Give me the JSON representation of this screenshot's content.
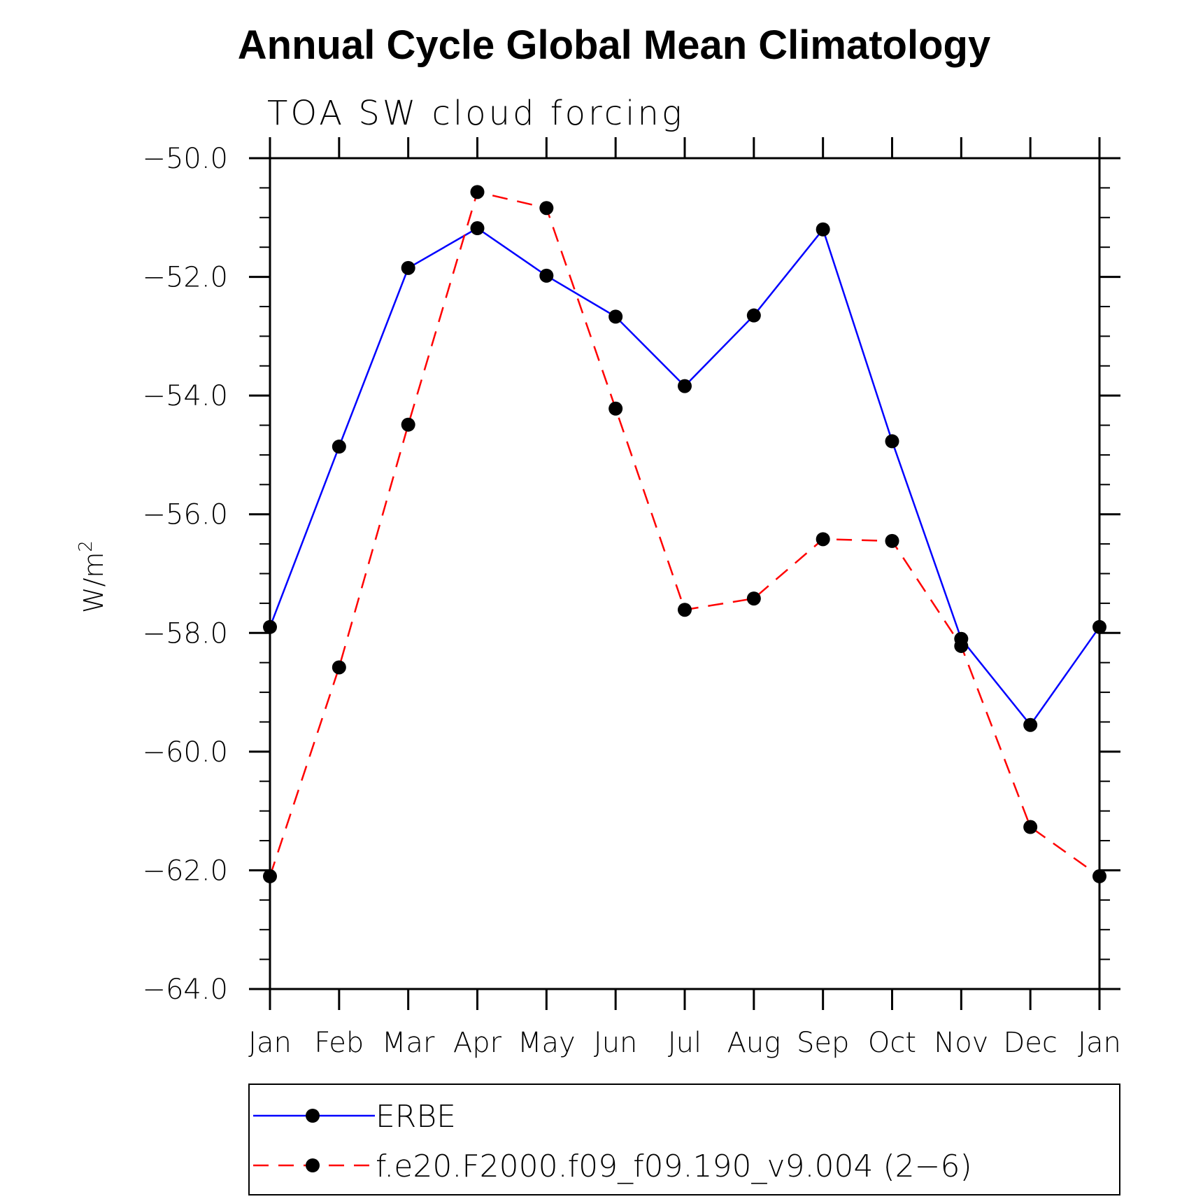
{
  "chart_data": {
    "type": "line",
    "title": "Annual Cycle Global Mean Climatology",
    "subtitle": "TOA SW cloud forcing",
    "ylabel": "W/m",
    "ylabel_superscript": "2",
    "xlabel": "",
    "categories": [
      "Jan",
      "Feb",
      "Mar",
      "Apr",
      "May",
      "Jun",
      "Jul",
      "Aug",
      "Sep",
      "Oct",
      "Nov",
      "Dec",
      "Jan"
    ],
    "ylim": [
      -64.0,
      -50.0
    ],
    "yticks": [
      -50.0,
      -52.0,
      -54.0,
      -56.0,
      -58.0,
      -60.0,
      -62.0,
      -64.0
    ],
    "ytick_labels": [
      "−50.0",
      "−52.0",
      "−54.0",
      "−56.0",
      "−58.0",
      "−60.0",
      "−62.0",
      "−64.0"
    ],
    "legend_position": "bottom",
    "series": [
      {
        "name": "ERBE",
        "color": "#0000ff",
        "dash": "solid",
        "values": [
          -57.9,
          -54.86,
          -51.85,
          -51.18,
          -51.98,
          -52.67,
          -53.84,
          -52.65,
          -51.2,
          -54.77,
          -58.1,
          -59.55,
          -57.9
        ]
      },
      {
        "name": "f.e20.F2000.f09_f09.190_v9.004 (2−6)",
        "color": "#ff0000",
        "dash": "dashed",
        "values": [
          -62.1,
          -58.58,
          -54.49,
          -50.57,
          -50.84,
          -54.22,
          -57.61,
          -57.42,
          -56.42,
          -56.45,
          -58.22,
          -61.27,
          -62.1
        ]
      }
    ]
  }
}
